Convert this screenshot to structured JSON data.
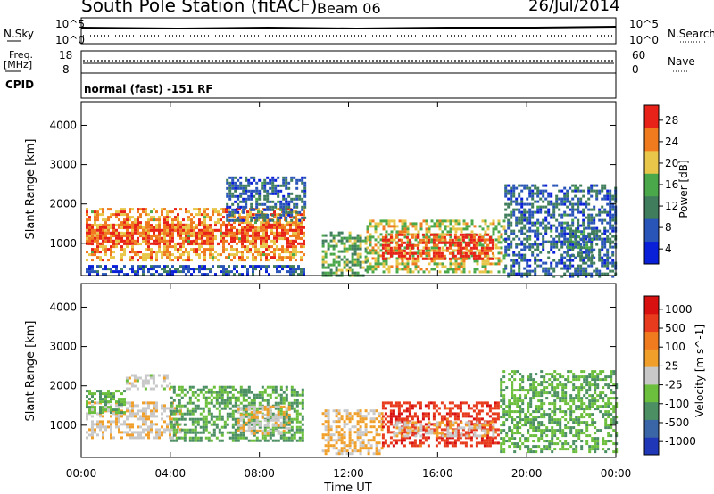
{
  "header": {
    "station": "South Pole Station (fitACF)",
    "beam": "Beam 06",
    "date": "26/Jul/2014"
  },
  "status_panels": {
    "nsky_label": "N.Sky",
    "nsearch_label": "N.Search",
    "freq_label_1": "Freq.",
    "freq_label_2": "[MHz]",
    "nave_label": "Nave",
    "cpid_label": "CPID",
    "cpid_value": "normal (fast) -151 RF",
    "noise_ticks": [
      "10^5",
      "10^0"
    ],
    "noise_ticks_right": [
      "10^5",
      "10^0"
    ],
    "freq_ticks": [
      "18",
      "8"
    ],
    "nave_ticks": [
      "60",
      "0"
    ]
  },
  "axes": {
    "xlabel": "Time UT",
    "ylabel": "Slant Range [km]",
    "x_ticks": [
      "00:00",
      "04:00",
      "08:00",
      "12:00",
      "16:00",
      "20:00",
      "00:00"
    ],
    "y_ticks": [
      "1000",
      "2000",
      "3000",
      "4000"
    ]
  },
  "colorbars": {
    "power": {
      "label": "Power [dB]",
      "ticks": [
        "28",
        "24",
        "20",
        "16",
        "12",
        "8",
        "4"
      ],
      "colors": [
        "#0a1fd8",
        "#2a55b8",
        "#3f7d5c",
        "#4aa84a",
        "#e8c64a",
        "#f07a1e",
        "#e82218"
      ]
    },
    "velocity": {
      "label": "Velocity [m s^-1]",
      "ticks": [
        "1000",
        "500",
        "100",
        "25",
        "-25",
        "-100",
        "-500",
        "-1000"
      ],
      "colors": [
        "#2038b8",
        "#3a66a8",
        "#4b8f62",
        "#6bbf3c",
        "#c8c8c8",
        "#f0a02a",
        "#f07a1e",
        "#e83a1c",
        "#d81010"
      ]
    }
  },
  "chart_data": [
    {
      "type": "heatmap",
      "title": "Power [dB]",
      "xlabel": "Time UT",
      "ylabel": "Slant Range [km]",
      "xlim": [
        0,
        24
      ],
      "ylim": [
        180,
        4600
      ],
      "clim": [
        0,
        30
      ],
      "segments": [
        {
          "t0": 0.2,
          "t1": 10.0,
          "r0": 600,
          "r1": 1900,
          "p": 22
        },
        {
          "t0": 0.2,
          "t1": 10.0,
          "r0": 1000,
          "r1": 1500,
          "p": 26
        },
        {
          "t0": 6.5,
          "t1": 10.0,
          "r0": 1600,
          "r1": 2700,
          "p": 8
        },
        {
          "t0": 0.2,
          "t1": 10.0,
          "r0": 180,
          "r1": 450,
          "p": 6
        },
        {
          "t0": 10.8,
          "t1": 12.8,
          "r0": 180,
          "r1": 1300,
          "p": 14
        },
        {
          "t0": 12.8,
          "t1": 19.0,
          "r0": 300,
          "r1": 1600,
          "p": 18
        },
        {
          "t0": 13.5,
          "t1": 18.5,
          "r0": 600,
          "r1": 1250,
          "p": 27
        },
        {
          "t0": 19.0,
          "t1": 24.0,
          "r0": 180,
          "r1": 2500,
          "p": 8
        },
        {
          "t0": 21.8,
          "t1": 23.0,
          "r0": 700,
          "r1": 1400,
          "p": 12
        }
      ]
    },
    {
      "type": "heatmap",
      "title": "Velocity [m s^-1]",
      "xlabel": "Time UT",
      "ylabel": "Slant Range [km]",
      "xlim": [
        0,
        24
      ],
      "ylim": [
        180,
        4600
      ],
      "clim": [
        -1000,
        1000
      ],
      "segments": [
        {
          "t0": 0.2,
          "t1": 4.5,
          "r0": 700,
          "r1": 1600,
          "v": 80
        },
        {
          "t0": 0.2,
          "t1": 2.0,
          "r0": 1300,
          "r1": 1900,
          "v": -300
        },
        {
          "t0": 2.0,
          "t1": 4.0,
          "r0": 1900,
          "r1": 2300,
          "v": 0
        },
        {
          "t0": 4.0,
          "t1": 10.0,
          "r0": 600,
          "r1": 2000,
          "v": -350
        },
        {
          "t0": 7.0,
          "t1": 9.3,
          "r0": 800,
          "r1": 1500,
          "v": 70
        },
        {
          "t0": 10.8,
          "t1": 13.5,
          "r0": 300,
          "r1": 1400,
          "v": 150
        },
        {
          "t0": 13.5,
          "t1": 18.7,
          "r0": 500,
          "r1": 1600,
          "v": 700
        },
        {
          "t0": 14.0,
          "t1": 18.5,
          "r0": 700,
          "r1": 1100,
          "v": 90
        },
        {
          "t0": 18.8,
          "t1": 24.0,
          "r0": 300,
          "r1": 2400,
          "v": -300
        }
      ]
    }
  ]
}
